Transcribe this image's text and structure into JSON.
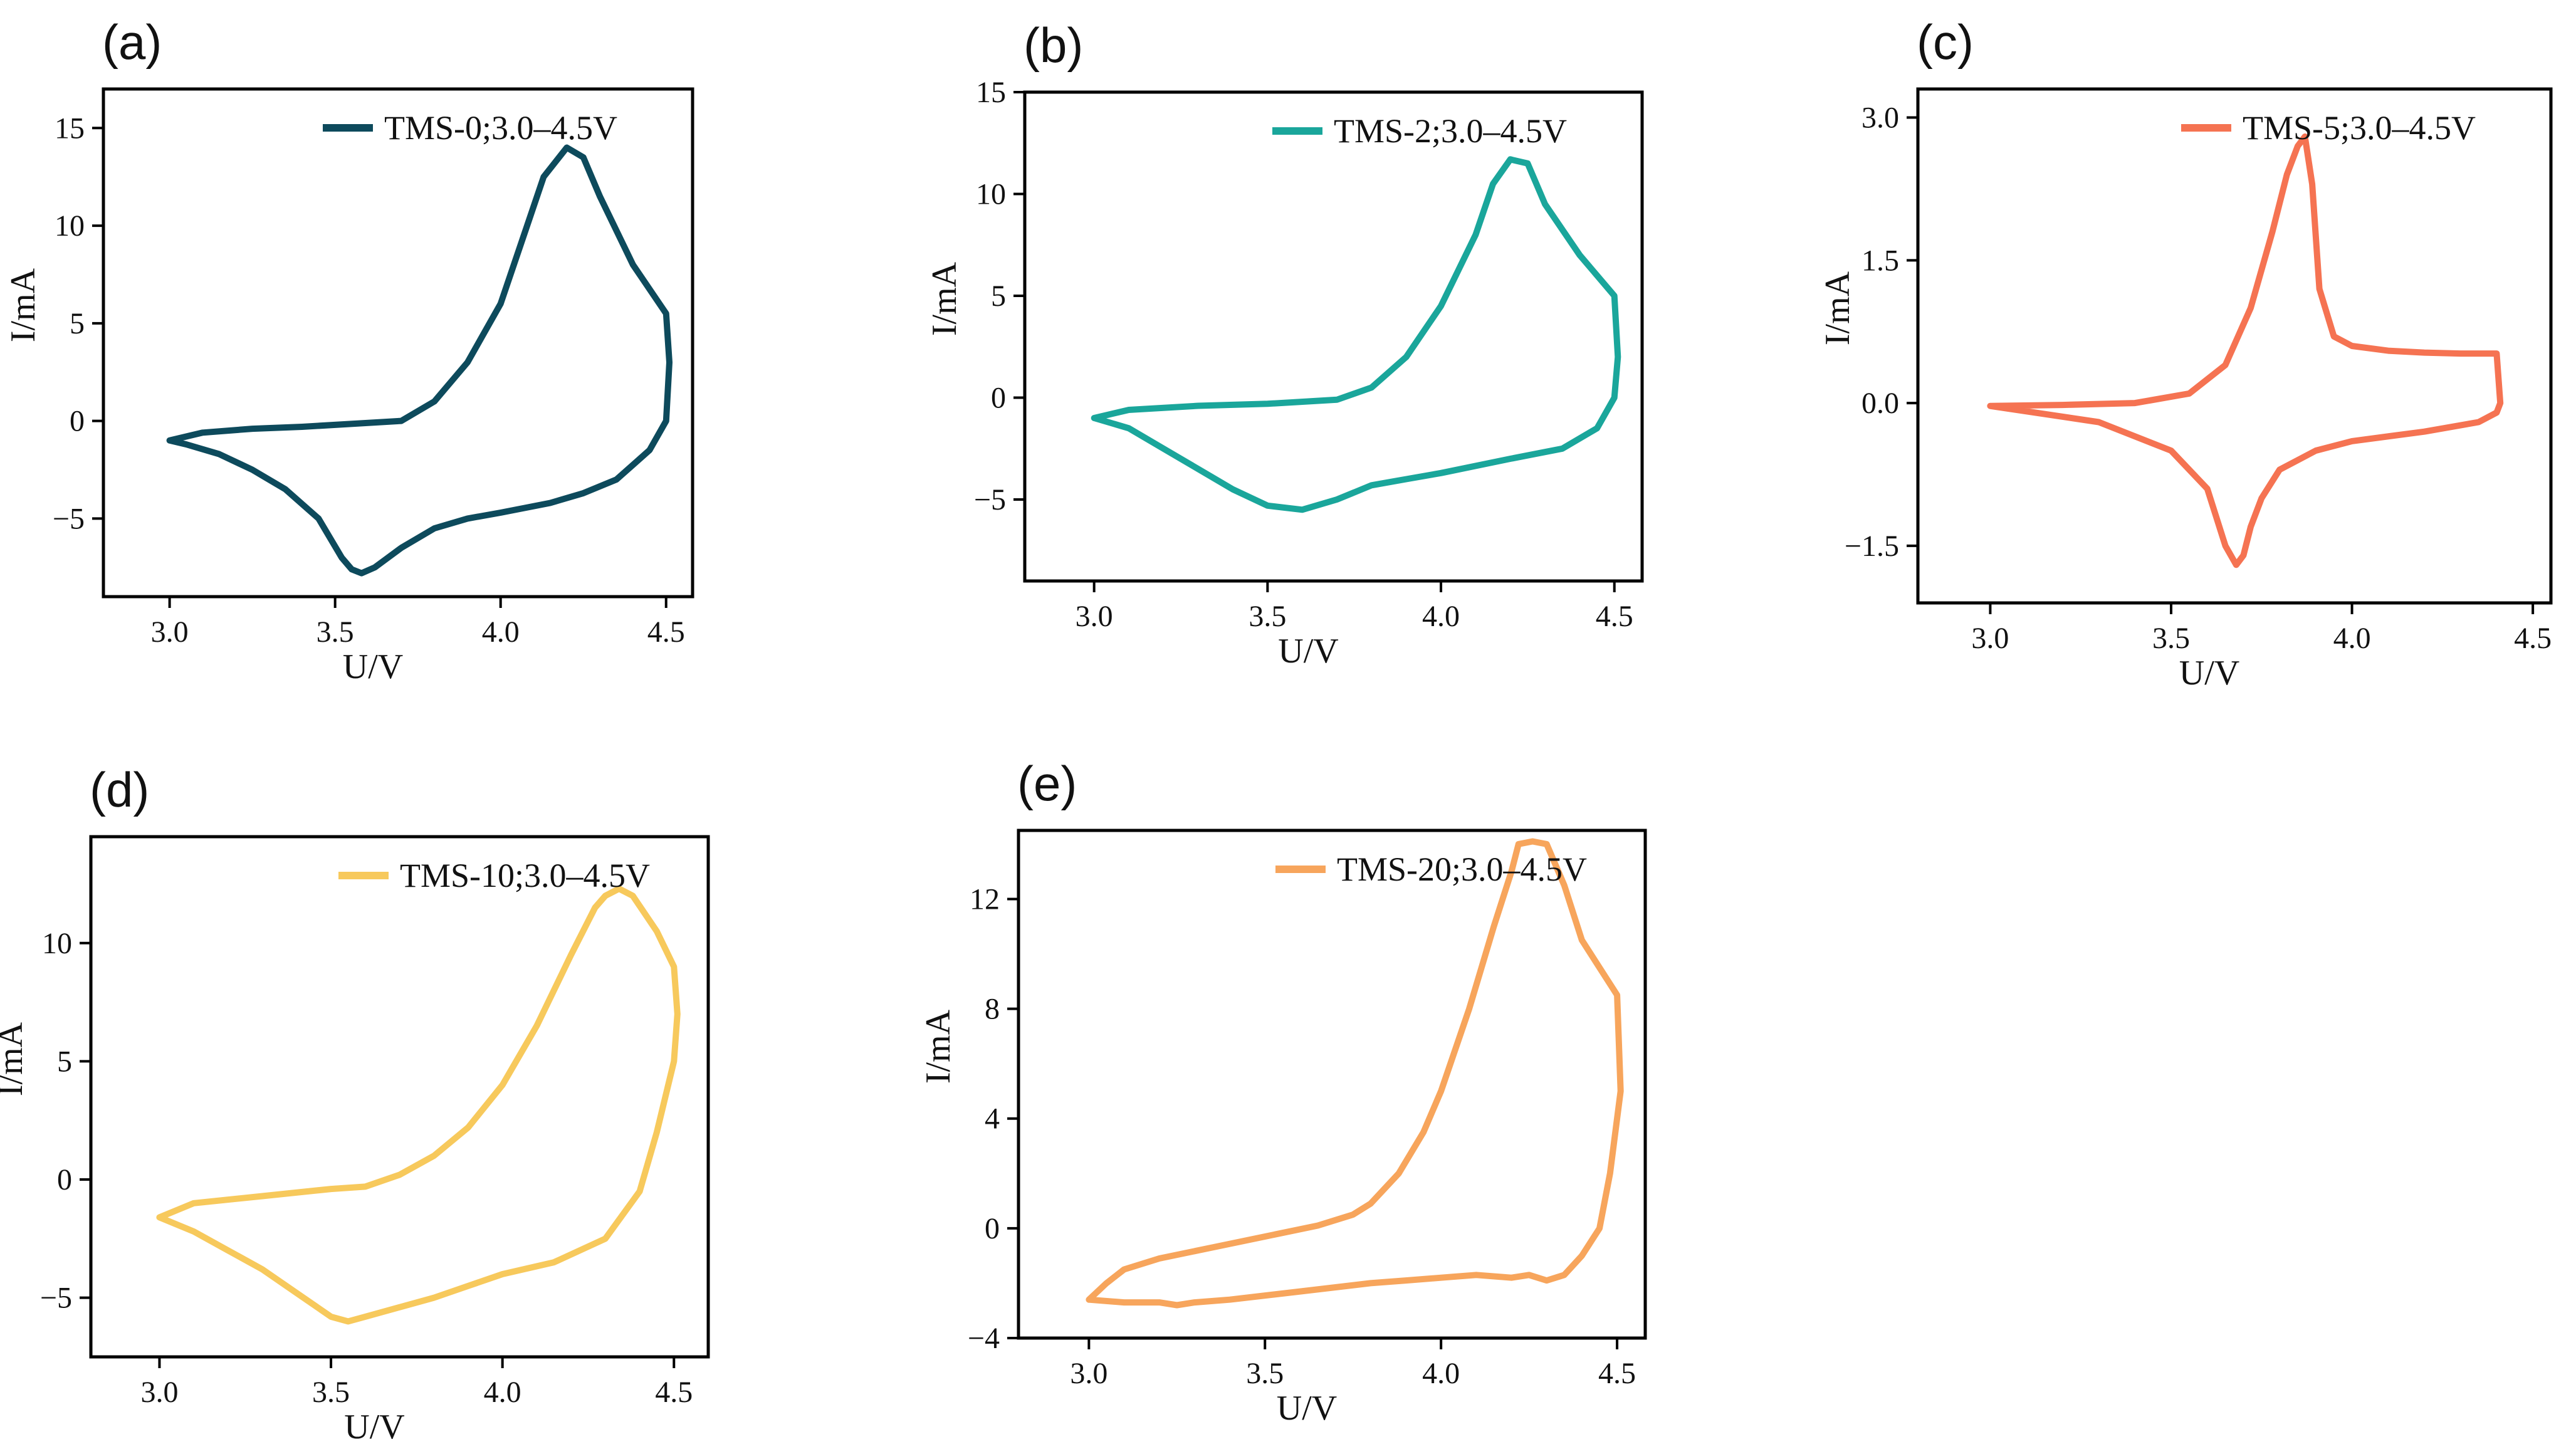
{
  "chart_data": [
    {
      "type": "line",
      "panel_label": "(a)",
      "xlabel": "U/V",
      "ylabel": "I/mA",
      "xlim": [
        2.8,
        4.58
      ],
      "ylim": [
        -9,
        17
      ],
      "xticks": [
        3.0,
        3.5,
        4.0,
        4.5
      ],
      "yticks": [
        -5,
        0,
        5,
        10,
        15
      ],
      "legend_position": "top-right",
      "grid": false,
      "series": [
        {
          "name": "TMS-0;3.0–4.5V",
          "color": "#0d4a5c",
          "x": [
            3.0,
            3.1,
            3.25,
            3.4,
            3.6,
            3.7,
            3.8,
            3.9,
            4.0,
            4.08,
            4.13,
            4.2,
            4.25,
            4.3,
            4.4,
            4.5,
            4.51,
            4.5,
            4.45,
            4.35,
            4.25,
            4.15,
            4.0,
            3.9,
            3.8,
            3.7,
            3.62,
            3.58,
            3.55,
            3.52,
            3.45,
            3.35,
            3.25,
            3.15,
            3.05,
            3.0
          ],
          "y": [
            -1.0,
            -0.6,
            -0.4,
            -0.3,
            -0.1,
            0.0,
            1.0,
            3.0,
            6.0,
            10.0,
            12.5,
            14.0,
            13.5,
            11.5,
            8.0,
            5.5,
            3.0,
            0.0,
            -1.5,
            -3.0,
            -3.7,
            -4.2,
            -4.7,
            -5.0,
            -5.5,
            -6.5,
            -7.5,
            -7.8,
            -7.6,
            -7.0,
            -5.0,
            -3.5,
            -2.5,
            -1.7,
            -1.2,
            -1.0
          ]
        }
      ]
    },
    {
      "type": "line",
      "panel_label": "(b)",
      "xlabel": "U/V",
      "ylabel": "I/mA",
      "xlim": [
        2.8,
        4.58
      ],
      "ylim": [
        -9,
        15
      ],
      "xticks": [
        3.0,
        3.5,
        4.0,
        4.5
      ],
      "yticks": [
        -5,
        0,
        5,
        10,
        15
      ],
      "legend_position": "top-right",
      "grid": false,
      "series": [
        {
          "name": "TMS-2;3.0–4.5V",
          "color": "#1aa69b",
          "x": [
            3.0,
            3.1,
            3.3,
            3.5,
            3.7,
            3.8,
            3.9,
            4.0,
            4.1,
            4.15,
            4.2,
            4.25,
            4.3,
            4.4,
            4.5,
            4.51,
            4.5,
            4.45,
            4.35,
            4.2,
            4.0,
            3.9,
            3.8,
            3.7,
            3.6,
            3.5,
            3.4,
            3.3,
            3.2,
            3.1,
            3.0
          ],
          "y": [
            -1.0,
            -0.6,
            -0.4,
            -0.3,
            -0.1,
            0.5,
            2.0,
            4.5,
            8.0,
            10.5,
            11.7,
            11.5,
            9.5,
            7.0,
            5.0,
            2.0,
            0.0,
            -1.5,
            -2.5,
            -3.0,
            -3.7,
            -4.0,
            -4.3,
            -5.0,
            -5.5,
            -5.3,
            -4.5,
            -3.5,
            -2.5,
            -1.5,
            -1.0
          ]
        }
      ]
    },
    {
      "type": "line",
      "panel_label": "(c)",
      "xlabel": "U/V",
      "ylabel": "I/mA",
      "xlim": [
        2.8,
        4.55
      ],
      "ylim": [
        -2.1,
        3.3
      ],
      "xticks": [
        3.0,
        3.5,
        4.0,
        4.5
      ],
      "yticks": [
        -1.5,
        0.0,
        1.5,
        3.0
      ],
      "legend_position": "top-right",
      "grid": false,
      "series": [
        {
          "name": "TMS-5;3.0–4.5V",
          "color": "#f57352",
          "x": [
            3.0,
            3.2,
            3.4,
            3.55,
            3.65,
            3.72,
            3.78,
            3.82,
            3.85,
            3.87,
            3.89,
            3.91,
            3.95,
            4.0,
            4.1,
            4.2,
            4.3,
            4.4,
            4.41,
            4.4,
            4.35,
            4.2,
            4.0,
            3.9,
            3.8,
            3.75,
            3.72,
            3.7,
            3.68,
            3.65,
            3.6,
            3.5,
            3.3,
            3.0
          ],
          "y": [
            -0.03,
            -0.02,
            0.0,
            0.1,
            0.4,
            1.0,
            1.8,
            2.4,
            2.7,
            2.8,
            2.3,
            1.2,
            0.7,
            0.6,
            0.55,
            0.53,
            0.52,
            0.52,
            0.0,
            -0.1,
            -0.2,
            -0.3,
            -0.4,
            -0.5,
            -0.7,
            -1.0,
            -1.3,
            -1.6,
            -1.7,
            -1.5,
            -0.9,
            -0.5,
            -0.2,
            -0.03
          ]
        }
      ]
    },
    {
      "type": "line",
      "panel_label": "(d)",
      "xlabel": "U/V",
      "ylabel": "I/mA",
      "xlim": [
        2.8,
        4.6
      ],
      "ylim": [
        -7.5,
        14.5
      ],
      "xticks": [
        3.0,
        3.5,
        4.0,
        4.5
      ],
      "yticks": [
        -5,
        0,
        5,
        10
      ],
      "legend_position": "top-right",
      "grid": false,
      "series": [
        {
          "name": "TMS-10;3.0–4.5V",
          "color": "#f7c95c",
          "x": [
            3.0,
            3.1,
            3.3,
            3.5,
            3.6,
            3.7,
            3.8,
            3.9,
            4.0,
            4.1,
            4.2,
            4.27,
            4.3,
            4.34,
            4.38,
            4.45,
            4.5,
            4.51,
            4.5,
            4.45,
            4.4,
            4.3,
            4.15,
            4.0,
            3.9,
            3.8,
            3.7,
            3.6,
            3.55,
            3.5,
            3.4,
            3.3,
            3.2,
            3.1,
            3.0
          ],
          "y": [
            -1.6,
            -1.0,
            -0.7,
            -0.4,
            -0.3,
            0.2,
            1.0,
            2.2,
            4.0,
            6.5,
            9.5,
            11.5,
            12.0,
            12.3,
            12.0,
            10.5,
            9.0,
            7.0,
            5.0,
            2.0,
            -0.5,
            -2.5,
            -3.5,
            -4.0,
            -4.5,
            -5.0,
            -5.4,
            -5.8,
            -6.0,
            -5.8,
            -4.8,
            -3.8,
            -3.0,
            -2.2,
            -1.6
          ]
        }
      ]
    },
    {
      "type": "line",
      "panel_label": "(e)",
      "xlabel": "U/V",
      "ylabel": "I/mA",
      "xlim": [
        2.8,
        4.58
      ],
      "ylim": [
        -4,
        14.5
      ],
      "xticks": [
        3.0,
        3.5,
        4.0,
        4.5
      ],
      "yticks": [
        -4,
        0,
        4,
        8,
        12
      ],
      "legend_position": "top-right",
      "grid": false,
      "series": [
        {
          "name": "TMS-20;3.0–4.5V",
          "color": "#f7a55c",
          "x": [
            3.0,
            3.05,
            3.1,
            3.2,
            3.35,
            3.5,
            3.65,
            3.75,
            3.8,
            3.88,
            3.95,
            4.0,
            4.08,
            4.15,
            4.2,
            4.22,
            4.26,
            4.3,
            4.35,
            4.4,
            4.5,
            4.51,
            4.48,
            4.45,
            4.4,
            4.35,
            4.3,
            4.25,
            4.2,
            4.1,
            4.0,
            3.9,
            3.8,
            3.6,
            3.4,
            3.3,
            3.25,
            3.2,
            3.1,
            3.0
          ],
          "y": [
            -2.6,
            -2.0,
            -1.5,
            -1.1,
            -0.7,
            -0.3,
            0.1,
            0.5,
            0.9,
            2.0,
            3.5,
            5.0,
            8.0,
            11.0,
            13.0,
            14.0,
            14.1,
            14.0,
            12.5,
            10.5,
            8.5,
            5.0,
            2.0,
            0.0,
            -1.0,
            -1.7,
            -1.9,
            -1.7,
            -1.8,
            -1.7,
            -1.8,
            -1.9,
            -2.0,
            -2.3,
            -2.6,
            -2.7,
            -2.8,
            -2.7,
            -2.7,
            -2.6
          ]
        }
      ]
    }
  ]
}
